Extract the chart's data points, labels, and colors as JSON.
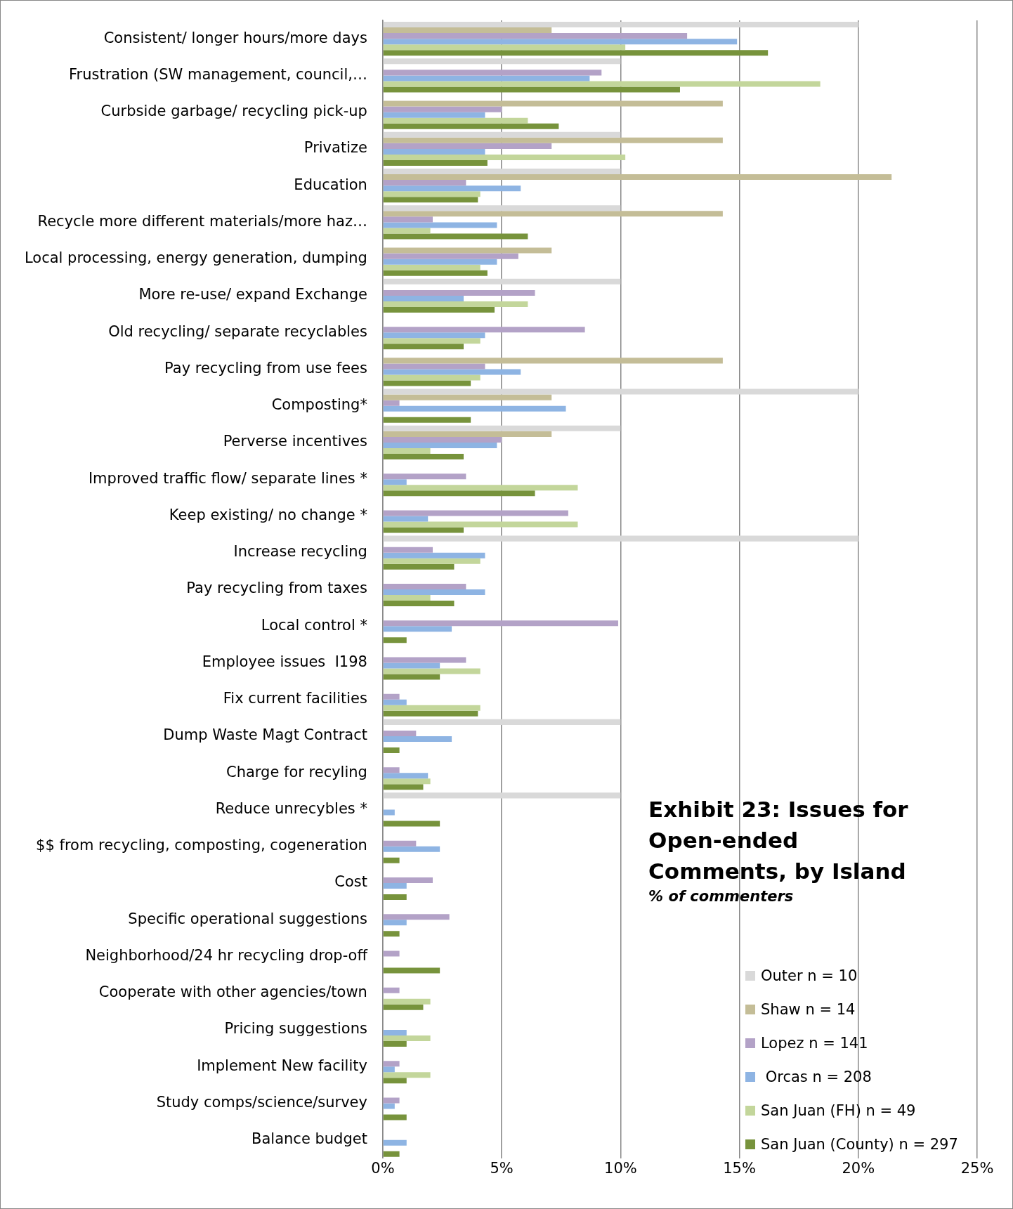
{
  "chart_data": {
    "type": "bar",
    "orientation": "horizontal",
    "title": "Exhibit 23: Issues for Open-ended Comments, by Island",
    "subtitle": "% of commenters",
    "categories": [
      "Consistent/ longer hours/more days",
      "Frustration (SW management, council,…",
      "Curbside garbage/ recycling pick-up",
      "Privatize",
      "Education",
      "Recycle more different materials/more haz…",
      "Local processing, energy generation, dumping",
      "More re-use/ expand Exchange",
      "Old recycling/ separate recyclables",
      "Pay recycling from use fees",
      "Composting*",
      "Perverse incentives",
      "Improved traffic flow/ separate lines *",
      "Keep existing/ no change *",
      "Increase recycling",
      "Pay recycling from taxes",
      "Local control *",
      "Employee issues  I198",
      "Fix current facilities",
      "Dump Waste Magt Contract",
      "Charge for recyling",
      "Reduce unrecybles *",
      "$$ from recycling, composting, cogeneration",
      "Cost",
      "Specific operational suggestions",
      "Neighborhood/24 hr recycling drop-off",
      "Cooperate with other agencies/town",
      "Pricing suggestions",
      "Implement New facility",
      "Study comps/science/survey",
      "Balance budget"
    ],
    "series": [
      {
        "name": "Outer n = 10",
        "color": "#d9d9d9",
        "values": [
          20,
          10,
          null,
          10,
          10,
          10,
          null,
          10,
          null,
          null,
          20,
          10,
          null,
          null,
          20,
          null,
          null,
          null,
          null,
          10,
          null,
          10,
          null,
          null,
          null,
          null,
          null,
          null,
          null,
          null,
          null
        ]
      },
      {
        "name": "Shaw n = 14",
        "color": "#c4bd97",
        "values": [
          7.1,
          null,
          14.3,
          14.3,
          21.4,
          14.3,
          7.1,
          null,
          null,
          14.3,
          7.1,
          7.1,
          null,
          null,
          null,
          null,
          null,
          null,
          null,
          null,
          null,
          null,
          null,
          null,
          null,
          null,
          null,
          null,
          null,
          null,
          null
        ]
      },
      {
        "name": "Lopez n = 141",
        "color": "#b3a2c7",
        "values": [
          12.8,
          9.2,
          5.0,
          7.1,
          3.5,
          2.1,
          5.7,
          6.4,
          8.5,
          4.3,
          0.7,
          5.0,
          3.5,
          7.8,
          2.1,
          3.5,
          9.9,
          3.5,
          0.7,
          1.4,
          0.7,
          null,
          1.4,
          2.1,
          2.8,
          0.7,
          0.7,
          null,
          0.7,
          0.7,
          null
        ]
      },
      {
        "name": " Orcas n = 208",
        "color": "#8eb4e3",
        "values": [
          14.9,
          8.7,
          4.3,
          4.3,
          5.8,
          4.8,
          4.8,
          3.4,
          4.3,
          5.8,
          7.7,
          4.8,
          1.0,
          1.9,
          4.3,
          4.3,
          2.9,
          2.4,
          1.0,
          2.9,
          1.9,
          0.5,
          2.4,
          1.0,
          1.0,
          null,
          null,
          1.0,
          0.5,
          0.5,
          1.0
        ]
      },
      {
        "name": "San Juan (FH) n = 49",
        "color": "#c3d69b",
        "values": [
          10.2,
          18.4,
          6.1,
          10.2,
          4.1,
          2.0,
          4.1,
          6.1,
          4.1,
          4.1,
          null,
          2.0,
          8.2,
          8.2,
          4.1,
          2.0,
          null,
          4.1,
          4.1,
          null,
          2.0,
          null,
          null,
          null,
          null,
          null,
          2.0,
          2.0,
          2.0,
          null,
          null
        ]
      },
      {
        "name": "San Juan (County) n = 297",
        "color": "#77933c",
        "values": [
          16.2,
          12.5,
          7.4,
          4.4,
          4.0,
          6.1,
          4.4,
          4.7,
          3.4,
          3.7,
          3.7,
          3.4,
          6.4,
          3.4,
          3.0,
          3.0,
          1.0,
          2.4,
          4.0,
          0.7,
          1.7,
          2.4,
          0.7,
          1.0,
          0.7,
          2.4,
          1.7,
          1.0,
          1.0,
          1.0,
          0.7
        ]
      }
    ],
    "xlim": [
      0,
      25
    ],
    "xticks": [
      {
        "value": 0,
        "label": "0%"
      },
      {
        "value": 5,
        "label": "5%"
      },
      {
        "value": 10,
        "label": "10%"
      },
      {
        "value": 15,
        "label": "15%"
      },
      {
        "value": 20,
        "label": "20%"
      },
      {
        "value": 25,
        "label": "25%"
      }
    ],
    "grid": "x",
    "legend": "bottom right"
  }
}
